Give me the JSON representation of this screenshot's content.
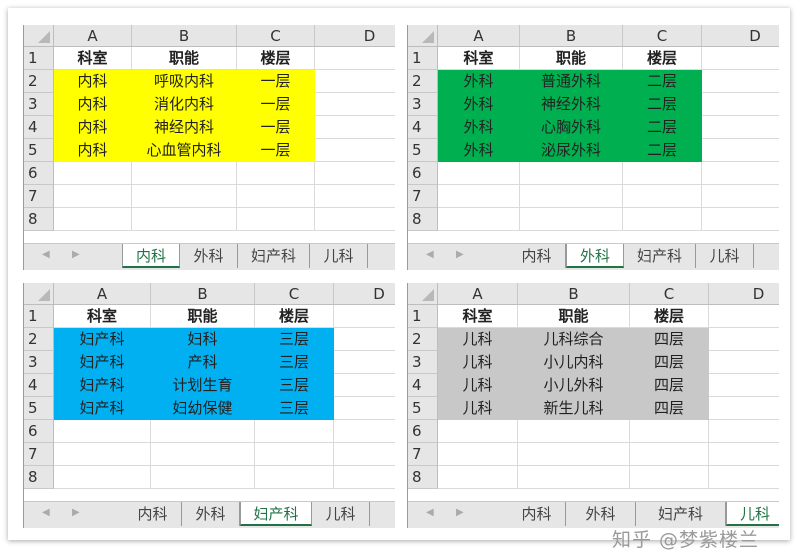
{
  "columns": [
    "A",
    "B",
    "C",
    "D"
  ],
  "row_numbers": [
    "1",
    "2",
    "3",
    "4",
    "5",
    "6",
    "7",
    "8"
  ],
  "header_row": [
    "科室",
    "职能",
    "楼层"
  ],
  "tabs": [
    "内科",
    "外科",
    "妇产科",
    "儿科"
  ],
  "nav": {
    "prev": "◀",
    "next": "▶"
  },
  "panels": [
    {
      "fill": "#ffff00",
      "active_tab": 0,
      "rows": [
        [
          "内科",
          "呼吸内科",
          "一层"
        ],
        [
          "内科",
          "消化内科",
          "一层"
        ],
        [
          "内科",
          "神经内科",
          "一层"
        ],
        [
          "内科",
          "心血管内科",
          "一层"
        ]
      ]
    },
    {
      "fill": "#00b050",
      "active_tab": 1,
      "rows": [
        [
          "外科",
          "普通外科",
          "二层"
        ],
        [
          "外科",
          "神经外科",
          "二层"
        ],
        [
          "外科",
          "心胸外科",
          "二层"
        ],
        [
          "外科",
          "泌尿外科",
          "二层"
        ]
      ]
    },
    {
      "fill": "#00b0f0",
      "active_tab": 2,
      "rows": [
        [
          "妇产科",
          "妇科",
          "三层"
        ],
        [
          "妇产科",
          "产科",
          "三层"
        ],
        [
          "妇产科",
          "计划生育",
          "三层"
        ],
        [
          "妇产科",
          "妇幼保健",
          "三层"
        ]
      ]
    },
    {
      "fill": "#c8c8c8",
      "active_tab": 3,
      "rows": [
        [
          "儿科",
          "儿科综合",
          "四层"
        ],
        [
          "儿科",
          "小儿内科",
          "四层"
        ],
        [
          "儿科",
          "小儿外科",
          "四层"
        ],
        [
          "儿科",
          "新生儿科",
          "四层"
        ]
      ]
    }
  ],
  "watermark": "知乎 @梦紫楼兰"
}
